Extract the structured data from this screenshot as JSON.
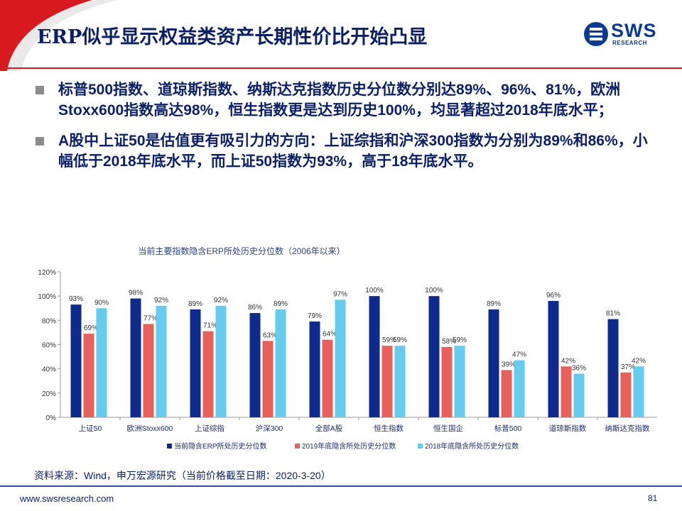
{
  "header": {
    "title": "ERP似乎显示权益类资产长期性价比开始凸显",
    "logo_text": "SWS",
    "logo_sub": "RESEARCH"
  },
  "bullets": [
    "标普500指数、道琼斯指数、纳斯达克指数历史分位数分别达89%、96%、81%，欧洲Stoxx600指数高达98%，恒生指数更是达到历史100%，均显著超过2018年底水平；",
    "A股中上证50是估值更有吸引力的方向：上证综指和沪深300指数为分别为89%和86%，小幅低于2018年底水平，而上证50指数为93%，高于18年底水平。"
  ],
  "chart_data": {
    "type": "bar",
    "title": "当前主要指数隐含ERP所处历史分位数（2006年以来）",
    "categories": [
      "上证50",
      "欧洲Stoxx600",
      "上证综指",
      "沪深300",
      "全部A股",
      "恒生指数",
      "恒生国企",
      "标普500",
      "道琼斯指数",
      "纳斯达克指数"
    ],
    "series": [
      {
        "name": "当前隐含ERP所处历史分位数",
        "values": [
          93,
          98,
          89,
          86,
          79,
          100,
          100,
          89,
          96,
          81
        ],
        "labels": [
          "93%",
          "98%",
          "89%",
          "86%",
          "79%",
          "100%",
          "100%",
          "89%",
          "96%",
          "81%"
        ]
      },
      {
        "name": "2019年底隐含所处历史分位数",
        "values": [
          69,
          77,
          71,
          63,
          64,
          59,
          58,
          39,
          42,
          37
        ],
        "labels": [
          "69%",
          "77%",
          "71%",
          "63%",
          "64%",
          "59%",
          "58%",
          "39%",
          "42%",
          "37%"
        ]
      },
      {
        "name": "2018年底隐含所处历史分位数",
        "values": [
          90,
          92,
          92,
          89,
          97,
          59,
          59,
          47,
          36,
          42
        ],
        "labels": [
          "90%",
          "92%",
          "92%",
          "89%",
          "97%",
          "59%",
          "59%",
          "47%",
          "36%",
          "42%"
        ]
      }
    ],
    "yticks": [
      "0%",
      "20%",
      "40%",
      "60%",
      "80%",
      "100%",
      "120%"
    ],
    "ylim": [
      0,
      120
    ],
    "xlabel": "",
    "ylabel": "",
    "legend_position": "bottom"
  },
  "colors": {
    "series": [
      "#0d2a8c",
      "#e8605a",
      "#66ccee"
    ],
    "title_navy": "#0a1f66",
    "accent_red": "#d71920"
  },
  "source": "资料来源：Wind，申万宏源研究（当前价格截至日期：2020-3-20）",
  "footer": {
    "url": "www.swsresearch.com",
    "page": "81"
  }
}
